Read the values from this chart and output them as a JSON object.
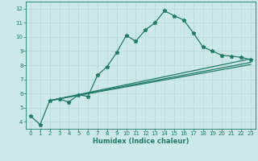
{
  "xlabel": "Humidex (Indice chaleur)",
  "background_color": "#cce8e8",
  "line_color": "#1e7a6a",
  "xlim": [
    -0.5,
    23.5
  ],
  "ylim": [
    3.5,
    12.5
  ],
  "xticks": [
    0,
    1,
    2,
    3,
    4,
    5,
    6,
    7,
    8,
    9,
    10,
    11,
    12,
    13,
    14,
    15,
    16,
    17,
    18,
    19,
    20,
    21,
    22,
    23
  ],
  "yticks": [
    4,
    5,
    6,
    7,
    8,
    9,
    10,
    11,
    12
  ],
  "line1_x": [
    0,
    1,
    2,
    3,
    4,
    5,
    6,
    7,
    8,
    9,
    10,
    11,
    12,
    13,
    14,
    15,
    16,
    17,
    18,
    19,
    20,
    21,
    22,
    23
  ],
  "line1_y": [
    4.4,
    3.8,
    5.5,
    5.6,
    5.4,
    5.9,
    5.8,
    7.3,
    7.9,
    8.9,
    10.1,
    9.7,
    10.5,
    11.0,
    11.85,
    11.5,
    11.2,
    10.3,
    9.3,
    9.0,
    8.7,
    8.65,
    8.55,
    8.4
  ],
  "line2_x": [
    2,
    23
  ],
  "line2_y": [
    5.5,
    8.45
  ],
  "line3_x": [
    2,
    23
  ],
  "line3_y": [
    5.5,
    8.2
  ],
  "line4_x": [
    2,
    23
  ],
  "line4_y": [
    5.5,
    8.05
  ],
  "grid_color": "#b8d8d8",
  "marker": "*",
  "markersize": 3.5,
  "linewidth": 0.9,
  "tick_fontsize": 5.0,
  "xlabel_fontsize": 6.0
}
